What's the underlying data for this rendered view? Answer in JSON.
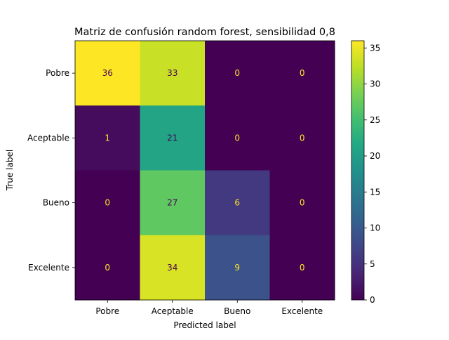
{
  "chart_data": {
    "type": "heatmap",
    "title": "Matriz de confusión random forest, sensibilidad 0,8",
    "xlabel": "Predicted label",
    "ylabel": "True label",
    "x_categories": [
      "Pobre",
      "Aceptable",
      "Bueno",
      "Excelente"
    ],
    "y_categories": [
      "Pobre",
      "Aceptable",
      "Bueno",
      "Excelente"
    ],
    "values": [
      [
        36,
        33,
        0,
        0
      ],
      [
        1,
        21,
        0,
        0
      ],
      [
        0,
        27,
        6,
        0
      ],
      [
        0,
        34,
        9,
        0
      ]
    ],
    "colormap": "viridis",
    "vmin": 0,
    "vmax": 36,
    "colorbar_ticks": [
      0,
      5,
      10,
      15,
      20,
      25,
      30,
      35
    ],
    "grid": false
  }
}
